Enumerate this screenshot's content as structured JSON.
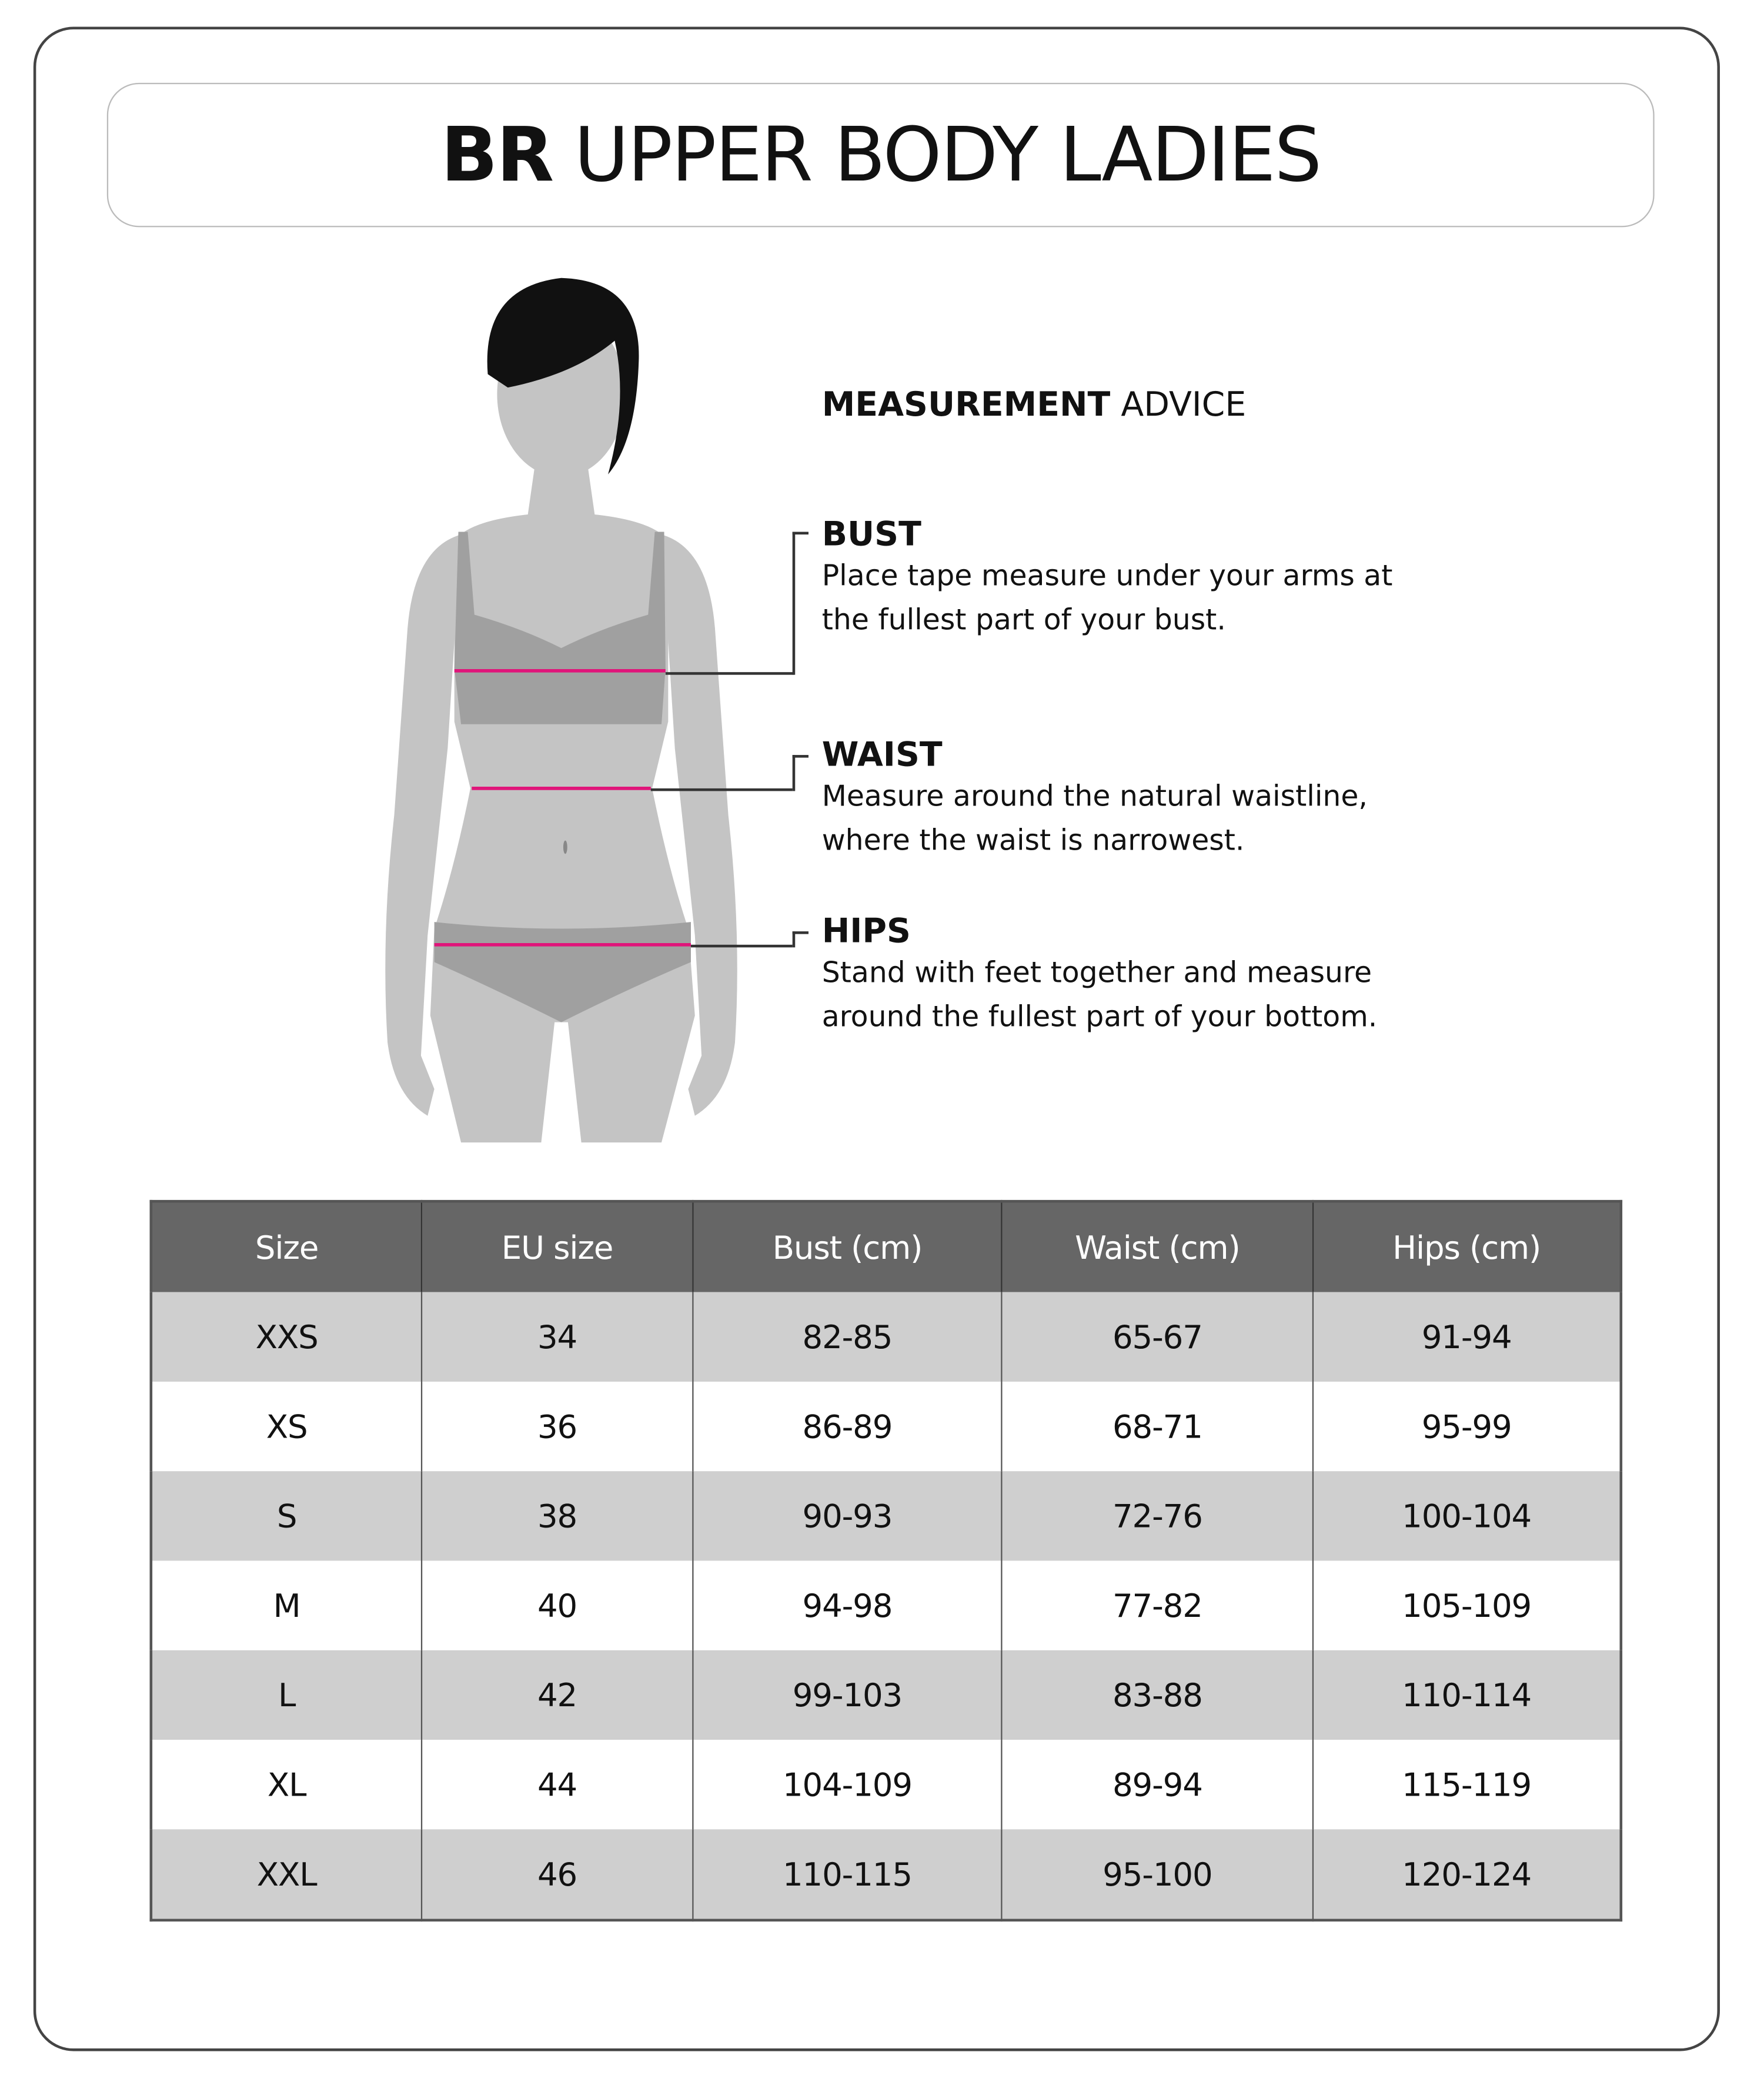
{
  "title": {
    "bold": "BR",
    "light": "UPPER BODY LADIES"
  },
  "advice": {
    "heading_bold": "MEASUREMENT",
    "heading_light": "ADVICE",
    "sections": [
      {
        "title": "BUST",
        "lines": [
          "Place tape measure under your arms at",
          "the fullest part of your bust."
        ]
      },
      {
        "title": "WAIST",
        "lines": [
          "Measure around the natural waistline,",
          "where the waist is narrowest."
        ]
      },
      {
        "title": "HIPS",
        "lines": [
          "Stand with feet together and measure",
          "around the fullest part of your bottom."
        ]
      }
    ]
  },
  "colors": {
    "header_bg": "#666666",
    "stripe": "#cfcfcf",
    "measure_line": "#e0157a",
    "figure": "#c4c4c4",
    "garment": "#a0a0a0",
    "hair": "#111111"
  },
  "table": {
    "headers": [
      "Size",
      "EU size",
      "Bust (cm)",
      "Waist (cm)",
      "Hips (cm)"
    ],
    "rows": [
      [
        "XXS",
        "34",
        "82-85",
        "65-67",
        "91-94"
      ],
      [
        "XS",
        "36",
        "86-89",
        "68-71",
        "95-99"
      ],
      [
        "S",
        "38",
        "90-93",
        "72-76",
        "100-104"
      ],
      [
        "M",
        "40",
        "94-98",
        "77-82",
        "105-109"
      ],
      [
        "L",
        "42",
        "99-103",
        "83-88",
        "110-114"
      ],
      [
        "XL",
        "44",
        "104-109",
        "89-94",
        "115-119"
      ],
      [
        "XXL",
        "46",
        "110-115",
        "95-100",
        "120-124"
      ]
    ]
  }
}
